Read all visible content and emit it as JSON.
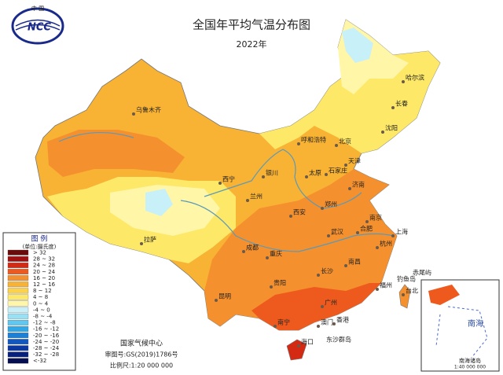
{
  "header": {
    "logo_top": "中 国",
    "logo": "NCC",
    "title": "全国年平均气温分布图",
    "subtitle": "2022年"
  },
  "legend": {
    "title": "图 例",
    "unit": "(单位:摄氏度)",
    "items": [
      {
        "label": "> 32",
        "color": "#6b0a0a"
      },
      {
        "label": "28 ~ 32",
        "color": "#a01010"
      },
      {
        "label": "24 ~ 28",
        "color": "#d42a14"
      },
      {
        "label": "20 ~ 24",
        "color": "#ee5a1e"
      },
      {
        "label": "16 ~ 20",
        "color": "#f5902e"
      },
      {
        "label": "12 ~ 16",
        "color": "#f8b234"
      },
      {
        "label": "8 ~ 12",
        "color": "#fbd24a"
      },
      {
        "label": "4 ~ 8",
        "color": "#fde868"
      },
      {
        "label": "0 ~ 4",
        "color": "#fff6a8"
      },
      {
        "label": "-4 ~ 0",
        "color": "#c8f0f8"
      },
      {
        "label": "-8 ~ -4",
        "color": "#98e0f4"
      },
      {
        "label": "-12 ~ -8",
        "color": "#60c8f0"
      },
      {
        "label": "-16 ~ -12",
        "color": "#30a8e8"
      },
      {
        "label": "-20 ~ -16",
        "color": "#1a80d8"
      },
      {
        "label": "-24 ~ -20",
        "color": "#1058c0"
      },
      {
        "label": "-28 ~ -24",
        "color": "#0a38a0"
      },
      {
        "label": "-32 ~ -28",
        "color": "#08207a"
      },
      {
        "label": "<-32",
        "color": "#050f50"
      }
    ]
  },
  "cities": [
    "哈尔滨",
    "长春",
    "沈阳",
    "乌鲁木齐",
    "呼和浩特",
    "北京",
    "天津",
    "石家庄",
    "太原",
    "济南",
    "银川",
    "西宁",
    "兰州",
    "郑州",
    "西安",
    "拉萨",
    "成都",
    "重庆",
    "武汉",
    "合肥",
    "南京",
    "上海",
    "杭州",
    "长沙",
    "南昌",
    "福州",
    "台北",
    "贵阳",
    "昆明",
    "南宁",
    "广州",
    "香港",
    "澳门",
    "海口"
  ],
  "places": [
    "东沙群岛",
    "钓鱼岛",
    "赤尾屿"
  ],
  "footer": {
    "org": "国家气候中心",
    "approval": "审图号:GS(2019)1786号",
    "scale": "比例尺:1:20 000 000"
  },
  "inset": {
    "sea": "南海",
    "title": "南海诸岛",
    "scale": "1:40 000 000"
  }
}
